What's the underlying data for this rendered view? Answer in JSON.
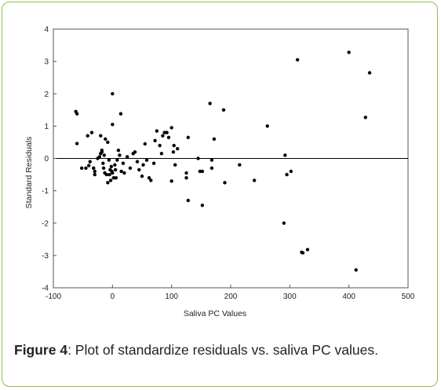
{
  "chart_data": {
    "type": "scatter",
    "title": "",
    "xlabel": "Saliva PC Values",
    "ylabel": "Standard Residuals",
    "xlim": [
      -100,
      500
    ],
    "ylim": [
      -4,
      4
    ],
    "xticks": [
      "-100",
      "0",
      "100",
      "200",
      "300",
      "400",
      "500"
    ],
    "yticks": [
      "4",
      "3",
      "2",
      "1",
      "0",
      "-1",
      "-2",
      "-3",
      "-4"
    ],
    "reference_line_y": 0,
    "grid": false,
    "marker_color": "#000000",
    "points": [
      [
        -62,
        1.45
      ],
      [
        -60,
        1.38
      ],
      [
        -60,
        0.46
      ],
      [
        -52,
        -0.3
      ],
      [
        -45,
        -0.3
      ],
      [
        -42,
        0.7
      ],
      [
        -40,
        -0.22
      ],
      [
        -38,
        -0.1
      ],
      [
        -35,
        0.8
      ],
      [
        -32,
        -0.3
      ],
      [
        -30,
        -0.4
      ],
      [
        -30,
        -0.5
      ],
      [
        -25,
        0.0
      ],
      [
        -22,
        0.05
      ],
      [
        -20,
        0.15
      ],
      [
        -20,
        0.7
      ],
      [
        -18,
        0.25
      ],
      [
        -18,
        0.2
      ],
      [
        -16,
        -0.15
      ],
      [
        -15,
        -0.3
      ],
      [
        -14,
        0.1
      ],
      [
        -13,
        -0.45
      ],
      [
        -12,
        0.6
      ],
      [
        -10,
        -0.5
      ],
      [
        -8,
        0.5
      ],
      [
        -8,
        -0.75
      ],
      [
        -6,
        -0.05
      ],
      [
        -5,
        -0.5
      ],
      [
        -4,
        -0.35
      ],
      [
        -3,
        -0.68
      ],
      [
        -2,
        -0.25
      ],
      [
        -1,
        -0.4
      ],
      [
        0,
        2.0
      ],
      [
        0,
        1.05
      ],
      [
        0,
        -0.45
      ],
      [
        2,
        -0.6
      ],
      [
        4,
        -0.2
      ],
      [
        5,
        -0.35
      ],
      [
        6,
        -0.6
      ],
      [
        8,
        -0.05
      ],
      [
        10,
        0.25
      ],
      [
        12,
        0.1
      ],
      [
        14,
        1.38
      ],
      [
        15,
        -0.4
      ],
      [
        18,
        -0.15
      ],
      [
        20,
        -0.45
      ],
      [
        25,
        0.05
      ],
      [
        30,
        -0.3
      ],
      [
        35,
        0.15
      ],
      [
        38,
        0.2
      ],
      [
        42,
        -0.1
      ],
      [
        45,
        -0.35
      ],
      [
        50,
        -0.55
      ],
      [
        52,
        -0.2
      ],
      [
        55,
        0.45
      ],
      [
        58,
        -0.05
      ],
      [
        62,
        -0.6
      ],
      [
        65,
        -0.68
      ],
      [
        70,
        -0.15
      ],
      [
        72,
        0.55
      ],
      [
        75,
        0.85
      ],
      [
        80,
        0.4
      ],
      [
        83,
        0.15
      ],
      [
        85,
        0.7
      ],
      [
        88,
        0.8
      ],
      [
        92,
        0.8
      ],
      [
        95,
        0.65
      ],
      [
        100,
        0.95
      ],
      [
        100,
        -0.7
      ],
      [
        103,
        0.2
      ],
      [
        104,
        0.4
      ],
      [
        106,
        -0.2
      ],
      [
        110,
        0.3
      ],
      [
        125,
        -0.45
      ],
      [
        125,
        -0.6
      ],
      [
        128,
        0.65
      ],
      [
        128,
        -1.3
      ],
      [
        145,
        0.0
      ],
      [
        148,
        -0.4
      ],
      [
        152,
        -0.4
      ],
      [
        152,
        -1.45
      ],
      [
        165,
        1.7
      ],
      [
        168,
        -0.05
      ],
      [
        168,
        -0.3
      ],
      [
        172,
        0.6
      ],
      [
        188,
        1.5
      ],
      [
        190,
        -0.75
      ],
      [
        215,
        -0.2
      ],
      [
        240,
        -0.68
      ],
      [
        262,
        1.0
      ],
      [
        290,
        -2.0
      ],
      [
        292,
        0.1
      ],
      [
        295,
        -0.5
      ],
      [
        302,
        -0.4
      ],
      [
        313,
        3.05
      ],
      [
        320,
        -2.9
      ],
      [
        322,
        -2.92
      ],
      [
        330,
        -2.82
      ],
      [
        400,
        3.28
      ],
      [
        412,
        -3.45
      ],
      [
        428,
        1.27
      ],
      [
        435,
        2.65
      ]
    ]
  },
  "caption": {
    "label": "Figure 4",
    "text": ": Plot of standardize residuals vs. saliva PC values."
  }
}
